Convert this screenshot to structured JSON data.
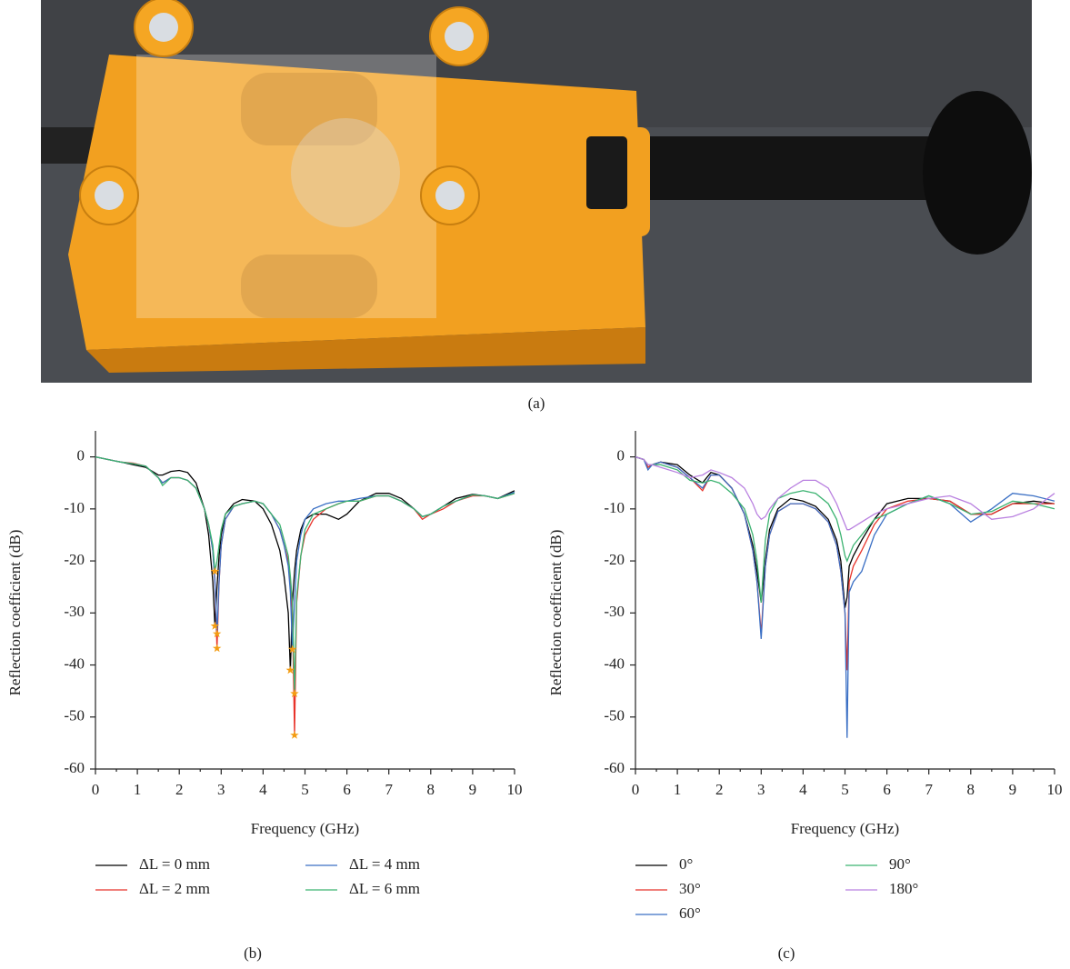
{
  "photo": {
    "caption": "(a)"
  },
  "chart_data": [
    {
      "type": "line",
      "caption": "(b)",
      "x_label": "Frequency (GHz)",
      "y_label": "Reflection coefficient (dB)",
      "x": [
        0,
        0.3,
        0.6,
        0.9,
        1.2,
        1.5,
        1.6,
        1.8,
        2.0,
        2.2,
        2.4,
        2.6,
        2.7,
        2.8,
        2.85,
        2.9,
        2.95,
        3.0,
        3.1,
        3.3,
        3.5,
        3.8,
        4.0,
        4.2,
        4.4,
        4.5,
        4.6,
        4.65,
        4.7,
        4.75,
        4.8,
        4.9,
        5.0,
        5.2,
        5.5,
        5.8,
        6.0,
        6.3,
        6.7,
        7.0,
        7.3,
        7.6,
        7.8,
        8.0,
        8.3,
        8.6,
        9.0,
        9.3,
        9.6,
        10.0
      ],
      "series": [
        {
          "name": "ΔL = 0 mm",
          "color": "#000000",
          "values": [
            0,
            -0.5,
            -1,
            -1.5,
            -2,
            -3.5,
            -3.5,
            -2.8,
            -2.6,
            -3,
            -5,
            -10,
            -15,
            -24,
            -32.5,
            -25,
            -19,
            -15,
            -11,
            -9,
            -8.2,
            -8.5,
            -10,
            -13,
            -18,
            -23,
            -30,
            -41,
            -28,
            -22,
            -18,
            -14,
            -12,
            -11,
            -11,
            -12,
            -11,
            -8.5,
            -7,
            -7,
            -8,
            -10,
            -11.5,
            -11,
            -9.5,
            -8,
            -7.2,
            -7.5,
            -8,
            -6.5
          ]
        },
        {
          "name": "ΔL = 2 mm",
          "color": "#e8332a",
          "values": [
            0,
            -0.5,
            -1,
            -1.2,
            -1.8,
            -4,
            -5,
            -4,
            -4,
            -4.5,
            -6,
            -10,
            -13,
            -18,
            -24,
            -36.8,
            -24,
            -17,
            -12,
            -9.5,
            -9,
            -8.5,
            -9,
            -11,
            -14,
            -17,
            -20,
            -24,
            -30,
            -53.5,
            -28,
            -19,
            -15,
            -12,
            -10,
            -9,
            -8.5,
            -8.5,
            -7.5,
            -7.5,
            -8.5,
            -10,
            -12,
            -11,
            -10,
            -8.5,
            -7.5,
            -7.5,
            -8,
            -7
          ]
        },
        {
          "name": "ΔL = 4 mm",
          "color": "#3a6fc4",
          "values": [
            0,
            -0.5,
            -1,
            -1.3,
            -1.8,
            -4,
            -5,
            -4,
            -4,
            -4.5,
            -6,
            -10,
            -13,
            -18,
            -24,
            -34,
            -24,
            -17,
            -12,
            -9.5,
            -9,
            -8.5,
            -9,
            -11,
            -14,
            -17,
            -21,
            -26,
            -37,
            -28,
            -20,
            -15,
            -12,
            -10,
            -9,
            -8.5,
            -8.5,
            -8,
            -7.5,
            -7.5,
            -8.5,
            -10,
            -11.5,
            -11,
            -9.5,
            -8.5,
            -7.3,
            -7.5,
            -8,
            -6.8
          ]
        },
        {
          "name": "ΔL = 6 mm",
          "color": "#3cb371",
          "values": [
            0,
            -0.5,
            -1,
            -1.3,
            -1.8,
            -4,
            -5.5,
            -4,
            -4,
            -4.5,
            -6,
            -10,
            -13,
            -17,
            -22,
            -20,
            -17,
            -14,
            -11,
            -9.5,
            -9,
            -8.5,
            -9,
            -11,
            -13,
            -16,
            -19,
            -23,
            -28,
            -45.5,
            -27,
            -19,
            -14,
            -11,
            -10,
            -9,
            -8.5,
            -8.5,
            -7.5,
            -7.5,
            -8.5,
            -10,
            -11.5,
            -11,
            -9.5,
            -8.5,
            -7.3,
            -7.5,
            -8,
            -7
          ]
        }
      ],
      "markers": {
        "color": "#f39c12",
        "x": [
          2.85,
          2.9,
          2.9,
          2.85,
          4.65,
          4.75,
          4.7,
          4.75
        ],
        "y": [
          -32.5,
          -36.8,
          -34,
          -22,
          -41,
          -53.5,
          -37,
          -45.5
        ]
      },
      "xlim": [
        0,
        10
      ],
      "xticks": [
        0,
        1,
        2,
        3,
        4,
        5,
        6,
        7,
        8,
        9,
        10
      ],
      "ylim": [
        -60,
        5
      ],
      "yticks": [
        0,
        -10,
        -20,
        -30,
        -40,
        -50,
        -60
      ]
    },
    {
      "type": "line",
      "caption": "(c)",
      "x_label": "Frequency (GHz)",
      "y_label": "Reflection coefficient (dB)",
      "x": [
        0,
        0.2,
        0.3,
        0.4,
        0.6,
        1.0,
        1.3,
        1.6,
        1.8,
        2.0,
        2.3,
        2.6,
        2.8,
        2.9,
        3.0,
        3.1,
        3.2,
        3.4,
        3.7,
        4.0,
        4.3,
        4.6,
        4.8,
        4.9,
        5.0,
        5.05,
        5.1,
        5.2,
        5.4,
        5.7,
        6.0,
        6.5,
        7.0,
        7.5,
        8.0,
        8.5,
        9.0,
        9.5,
        10.0
      ],
      "series": [
        {
          "name": "0°",
          "color": "#000000",
          "values": [
            0,
            -0.5,
            -2,
            -1.5,
            -1,
            -1.5,
            -3.5,
            -5,
            -3,
            -3.5,
            -6,
            -11,
            -17,
            -22,
            -28,
            -20,
            -14,
            -10,
            -8,
            -8.5,
            -9.5,
            -12,
            -16,
            -20,
            -29,
            -27,
            -21,
            -19,
            -16,
            -12,
            -9,
            -8,
            -8,
            -8.5,
            -11,
            -11,
            -9,
            -8.5,
            -9
          ]
        },
        {
          "name": "30°",
          "color": "#e8332a",
          "values": [
            0,
            -0.5,
            -2,
            -1.5,
            -1,
            -2,
            -4,
            -6.5,
            -3.5,
            -3.5,
            -6,
            -11,
            -18,
            -24,
            -34,
            -21,
            -15,
            -10.5,
            -9,
            -9,
            -10,
            -12.5,
            -17,
            -22,
            -30,
            -41,
            -24,
            -21,
            -18,
            -13,
            -10,
            -8.5,
            -8,
            -8.5,
            -11,
            -11,
            -9,
            -9,
            -9
          ]
        },
        {
          "name": "60°",
          "color": "#3a6fc4",
          "values": [
            0,
            -0.5,
            -2.5,
            -1.5,
            -1,
            -2,
            -4,
            -6,
            -3.5,
            -3.5,
            -6,
            -11,
            -18,
            -24,
            -35,
            -21,
            -15,
            -10.5,
            -9,
            -9,
            -10,
            -12.5,
            -17,
            -22,
            -30,
            -54,
            -26,
            -24,
            -22,
            -15,
            -11,
            -9,
            -7.5,
            -9,
            -12.5,
            -10,
            -7,
            -7.5,
            -8.5
          ]
        },
        {
          "name": "90°",
          "color": "#3cb371",
          "values": [
            0,
            -0.5,
            -1.5,
            -1.5,
            -1.5,
            -2.5,
            -4.5,
            -5,
            -4.5,
            -5,
            -7,
            -10,
            -15,
            -20,
            -28,
            -16,
            -11,
            -8,
            -7,
            -6.5,
            -7,
            -9,
            -12,
            -15,
            -19,
            -20,
            -19,
            -17,
            -15,
            -12,
            -11,
            -9,
            -7.5,
            -9,
            -11,
            -10.5,
            -8.5,
            -9,
            -10
          ]
        },
        {
          "name": "180°",
          "color": "#b980e0",
          "values": [
            0,
            -0.5,
            -1.5,
            -1.5,
            -2,
            -3,
            -4,
            -3.5,
            -2.5,
            -3,
            -4,
            -6,
            -9,
            -11,
            -12,
            -11.5,
            -10,
            -8,
            -6,
            -4.5,
            -4.5,
            -6,
            -9,
            -11,
            -13,
            -14,
            -14,
            -13.5,
            -12.5,
            -11,
            -10,
            -9,
            -8,
            -7.5,
            -9,
            -12,
            -11.5,
            -10,
            -7
          ]
        }
      ],
      "xlim": [
        0,
        10
      ],
      "xticks": [
        0,
        1,
        2,
        3,
        4,
        5,
        6,
        7,
        8,
        9,
        10
      ],
      "ylim": [
        -60,
        5
      ],
      "yticks": [
        0,
        -10,
        -20,
        -30,
        -40,
        -50,
        -60
      ]
    }
  ]
}
